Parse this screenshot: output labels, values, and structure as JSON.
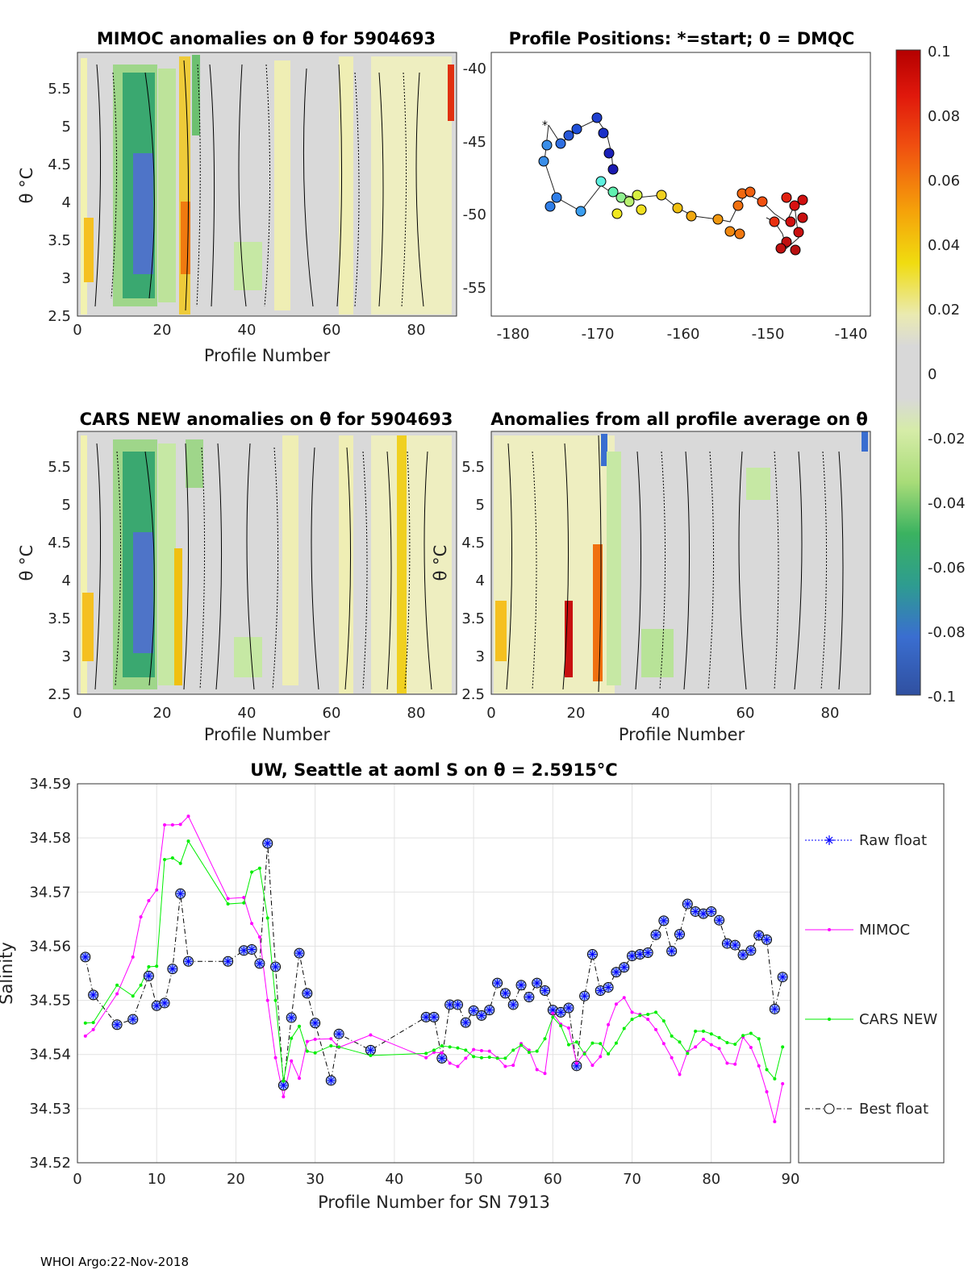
{
  "footer": "WHOI Argo:22-Nov-2018",
  "colors": {
    "raw": "#0000ff",
    "mimoc": "#ff00ff",
    "cars": "#00ee00",
    "best": "#000000",
    "marker_fill": "#9ab4f0"
  },
  "panels": {
    "mimoc": {
      "title": "MIMOC anomalies on θ  for 5904693",
      "ylabel": "θ °C",
      "xlabel": "Profile Number",
      "xticks": [
        "0",
        "20",
        "40",
        "60",
        "80"
      ],
      "yticks": [
        "2.5",
        "3",
        "3.5",
        "4",
        "4.5",
        "5",
        "5.5"
      ]
    },
    "positions": {
      "title": "Profile Positions: *=start; 0 = DMQC",
      "xticks": [
        "-180",
        "-170",
        "-160",
        "-150",
        "-140"
      ],
      "yticks": [
        "-40",
        "-45",
        "-50",
        "-55"
      ]
    },
    "cars": {
      "title": "CARS NEW anomalies on θ for 5904693",
      "ylabel": "θ °C",
      "xlabel": "Profile Number",
      "xticks": [
        "0",
        "20",
        "40",
        "60",
        "80"
      ],
      "yticks": [
        "2.5",
        "3",
        "3.5",
        "4",
        "4.5",
        "5",
        "5.5"
      ]
    },
    "allavg": {
      "title": "Anomalies from all profile average on θ",
      "ylabel": "θ °C",
      "xlabel": "Profile Number",
      "xticks": [
        "0",
        "20",
        "40",
        "60",
        "80"
      ],
      "yticks": [
        "2.5",
        "3",
        "3.5",
        "4",
        "4.5",
        "5",
        "5.5"
      ]
    }
  },
  "colorbar": {
    "ticks": [
      "0.1",
      "0.08",
      "0.06",
      "0.04",
      "0.02",
      "0",
      "-0.02",
      "-0.04",
      "-0.06",
      "-0.08",
      "-0.1"
    ]
  },
  "chart_data": {
    "type": "line",
    "title": "UW, Seattle at aoml S on θ = 2.5915°C",
    "xlabel": "Profile Number for SN 7913",
    "ylabel": "Salinity",
    "xlim": [
      0,
      90
    ],
    "ylim": [
      34.52,
      34.59
    ],
    "xticks": [
      0,
      10,
      20,
      30,
      40,
      50,
      60,
      70,
      80,
      90
    ],
    "yticks": [
      34.52,
      34.53,
      34.54,
      34.55,
      34.56,
      34.57,
      34.58,
      34.59
    ],
    "grid": true,
    "legend_position": "right",
    "legend": [
      "Raw float",
      "MIMOC",
      "CARS NEW",
      "Best float"
    ],
    "series": [
      {
        "name": "Raw float / Best float",
        "x": [
          1,
          2,
          5,
          7,
          9,
          10,
          11,
          12,
          13,
          14,
          19,
          21,
          22,
          23,
          24,
          25,
          26,
          27,
          28,
          29,
          30,
          32,
          33,
          37,
          44,
          45,
          46,
          47,
          48,
          49,
          50,
          51,
          52,
          53,
          54,
          55,
          56,
          57,
          58,
          59,
          60,
          61,
          62,
          63,
          64,
          65,
          66,
          67,
          68,
          69,
          70,
          71,
          72,
          73,
          74,
          75,
          76,
          77,
          78,
          79,
          80,
          81,
          82,
          83,
          84,
          85,
          86,
          87,
          88,
          89
        ],
        "values": [
          34.558,
          34.551,
          34.5455,
          34.5465,
          34.5545,
          34.549,
          34.5495,
          34.5558,
          34.5697,
          34.5572,
          34.5572,
          34.5592,
          34.5594,
          34.5568,
          34.579,
          34.5562,
          34.5343,
          34.5468,
          34.5587,
          34.5513,
          34.5458,
          34.5352,
          34.5438,
          34.5408,
          34.5469,
          34.5469,
          34.5393,
          34.5492,
          34.5492,
          34.5459,
          34.5481,
          34.5472,
          34.5482,
          34.5532,
          34.5513,
          34.5492,
          34.5528,
          34.5506,
          34.5532,
          34.5518,
          34.5482,
          34.5478,
          34.5486,
          34.5379,
          34.5508,
          34.5585,
          34.5518,
          34.5524,
          34.5552,
          34.5561,
          34.5582,
          34.5585,
          34.5588,
          34.5621,
          34.5647,
          34.5591,
          34.5622,
          34.5678,
          34.5664,
          34.566,
          34.5664,
          34.5648,
          34.5605,
          34.5602,
          34.5584,
          34.5592,
          34.562,
          34.5612,
          34.5484,
          34.5543
        ]
      },
      {
        "name": "MIMOC",
        "x": [
          1,
          2,
          5,
          7,
          8,
          9,
          10,
          11,
          12,
          13,
          14,
          19,
          21,
          22,
          23,
          24,
          25,
          26,
          27,
          28,
          29,
          30,
          32,
          33,
          37,
          44,
          45,
          46,
          47,
          48,
          49,
          50,
          51,
          52,
          53,
          54,
          55,
          56,
          57,
          58,
          59,
          60,
          61,
          62,
          63,
          64,
          65,
          66,
          67,
          68,
          69,
          70,
          71,
          72,
          73,
          74,
          75,
          76,
          77,
          78,
          79,
          80,
          81,
          82,
          83,
          84,
          85,
          86,
          87,
          88,
          89
        ],
        "values": [
          34.5434,
          34.5446,
          34.5512,
          34.558,
          34.5654,
          34.5684,
          34.5704,
          34.5824,
          34.5824,
          34.5825,
          34.584,
          34.5688,
          34.569,
          34.5642,
          34.5617,
          34.55,
          34.5394,
          34.5322,
          34.5388,
          34.5356,
          34.5424,
          34.5428,
          34.5429,
          34.5413,
          34.5436,
          34.5394,
          34.5404,
          34.5403,
          34.5384,
          34.5378,
          34.5393,
          34.5409,
          34.5407,
          34.5406,
          34.5394,
          34.5378,
          34.538,
          34.542,
          34.5408,
          34.5372,
          34.5365,
          34.5476,
          34.5456,
          34.5449,
          34.5384,
          34.5403,
          34.538,
          34.5396,
          34.5455,
          34.5493,
          34.5505,
          34.5478,
          34.5474,
          34.5465,
          34.5446,
          34.542,
          34.5394,
          34.5363,
          34.5405,
          34.5414,
          34.5428,
          34.5418,
          34.5411,
          34.5384,
          34.5382,
          34.5432,
          34.5413,
          34.5379,
          34.5331,
          34.5276,
          34.5346
        ]
      },
      {
        "name": "CARS NEW",
        "x": [
          1,
          2,
          5,
          7,
          8,
          9,
          10,
          11,
          12,
          13,
          14,
          19,
          21,
          22,
          23,
          24,
          25,
          26,
          27,
          28,
          29,
          30,
          32,
          33,
          37,
          44,
          45,
          46,
          47,
          48,
          49,
          50,
          51,
          52,
          53,
          54,
          55,
          56,
          57,
          58,
          59,
          60,
          61,
          62,
          63,
          64,
          65,
          66,
          67,
          68,
          69,
          70,
          71,
          72,
          73,
          74,
          75,
          76,
          77,
          78,
          79,
          80,
          81,
          82,
          83,
          84,
          85,
          86,
          87,
          88,
          89
        ],
        "values": [
          34.5458,
          34.5459,
          34.5528,
          34.5508,
          34.5528,
          34.5562,
          34.5563,
          34.576,
          34.5763,
          34.5753,
          34.5794,
          34.5678,
          34.568,
          34.5737,
          34.5744,
          34.5652,
          34.55,
          34.5351,
          34.543,
          34.5452,
          34.5406,
          34.5403,
          34.5416,
          34.5414,
          34.5398,
          34.5402,
          34.5408,
          34.5416,
          34.5414,
          34.5412,
          34.5408,
          34.5396,
          34.5394,
          34.5395,
          34.5393,
          34.5393,
          34.5408,
          34.5417,
          34.5404,
          34.5406,
          34.5429,
          34.5469,
          34.5453,
          34.5418,
          34.5423,
          34.5401,
          34.5421,
          34.542,
          34.5401,
          34.5421,
          34.5448,
          34.5465,
          34.5472,
          34.5474,
          34.5478,
          34.5462,
          34.5434,
          34.5423,
          34.5402,
          34.5443,
          34.5443,
          34.5438,
          34.5431,
          34.5422,
          34.5419,
          34.5435,
          34.5439,
          34.5429,
          34.5372,
          34.5355,
          34.5414
        ]
      }
    ]
  }
}
